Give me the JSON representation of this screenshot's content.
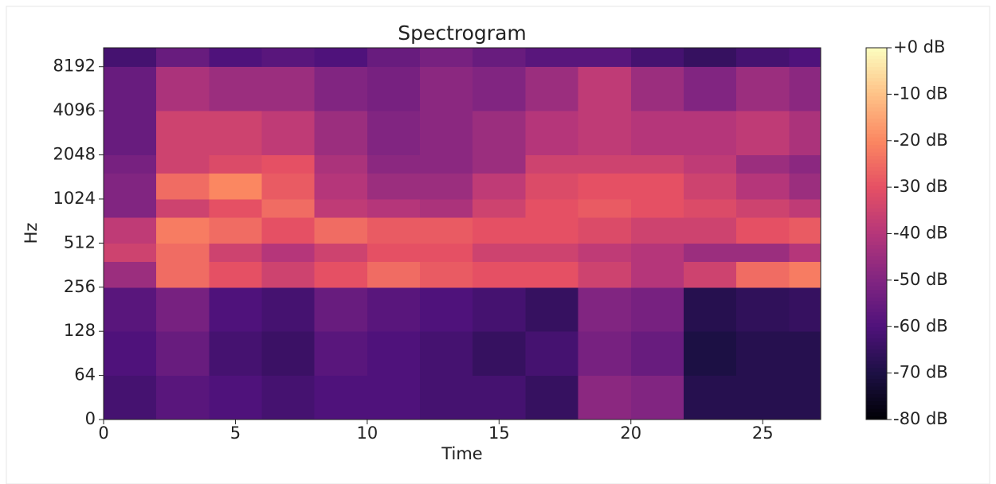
{
  "chart_data": {
    "type": "heatmap",
    "title": "Spectrogram",
    "x_label": "Time",
    "y_label": "Hz",
    "yscale": "symlog",
    "linthresh": 64,
    "x_edges": [
      0,
      2,
      4,
      6,
      8,
      10,
      12,
      14,
      16,
      18,
      20,
      22,
      24,
      26,
      27.2
    ],
    "y_edges": [
      0,
      64,
      128,
      256,
      384,
      512,
      768,
      1024,
      1536,
      2048,
      4096,
      8192,
      11025
    ],
    "z": [
      [
        -62,
        -58,
        -60,
        -62,
        -60,
        -60,
        -62,
        -62,
        -65,
        -48,
        -50,
        -68,
        -68,
        -68
      ],
      [
        -60,
        -55,
        -62,
        -64,
        -58,
        -60,
        -62,
        -65,
        -62,
        -52,
        -55,
        -70,
        -68,
        -68
      ],
      [
        -58,
        -52,
        -60,
        -62,
        -55,
        -58,
        -60,
        -62,
        -65,
        -50,
        -52,
        -68,
        -66,
        -65
      ],
      [
        -45,
        -25,
        -30,
        -35,
        -30,
        -25,
        -28,
        -30,
        -30,
        -35,
        -40,
        -35,
        -25,
        -22
      ],
      [
        -35,
        -25,
        -35,
        -40,
        -35,
        -30,
        -30,
        -35,
        -35,
        -38,
        -40,
        -45,
        -45,
        -40
      ],
      [
        -38,
        -22,
        -25,
        -30,
        -25,
        -28,
        -28,
        -30,
        -30,
        -32,
        -35,
        -35,
        -30,
        -28
      ],
      [
        -50,
        -35,
        -30,
        -25,
        -38,
        -40,
        -42,
        -35,
        -30,
        -28,
        -30,
        -32,
        -35,
        -38
      ],
      [
        -50,
        -25,
        -20,
        -28,
        -40,
        -45,
        -45,
        -38,
        -32,
        -30,
        -30,
        -35,
        -40,
        -45
      ],
      [
        -52,
        -35,
        -32,
        -30,
        -42,
        -48,
        -48,
        -45,
        -35,
        -35,
        -35,
        -38,
        -45,
        -48
      ],
      [
        -55,
        -35,
        -35,
        -38,
        -45,
        -50,
        -48,
        -45,
        -40,
        -38,
        -40,
        -40,
        -38,
        -42
      ],
      [
        -55,
        -42,
        -45,
        -45,
        -50,
        -52,
        -48,
        -50,
        -45,
        -38,
        -45,
        -50,
        -45,
        -48
      ],
      [
        -62,
        -55,
        -60,
        -58,
        -60,
        -55,
        -52,
        -55,
        -58,
        -58,
        -62,
        -65,
        -62,
        -60
      ]
    ],
    "xlim": [
      0,
      27.2
    ],
    "xticks": [
      0,
      5,
      10,
      15,
      20,
      25
    ],
    "ylim": [
      0,
      11025
    ],
    "yticks": [
      0,
      64,
      128,
      256,
      512,
      1024,
      2048,
      4096,
      8192
    ],
    "colormap": "magma",
    "clim": [
      -80,
      0
    ],
    "cticks": [
      {
        "value": 0,
        "label": "+0 dB"
      },
      {
        "value": -10,
        "label": "-10 dB"
      },
      {
        "value": -20,
        "label": "-20 dB"
      },
      {
        "value": -30,
        "label": "-30 dB"
      },
      {
        "value": -40,
        "label": "-40 dB"
      },
      {
        "value": -50,
        "label": "-50 dB"
      },
      {
        "value": -60,
        "label": "-60 dB"
      },
      {
        "value": -70,
        "label": "-70 dB"
      },
      {
        "value": -80,
        "label": "-80 dB"
      }
    ]
  }
}
